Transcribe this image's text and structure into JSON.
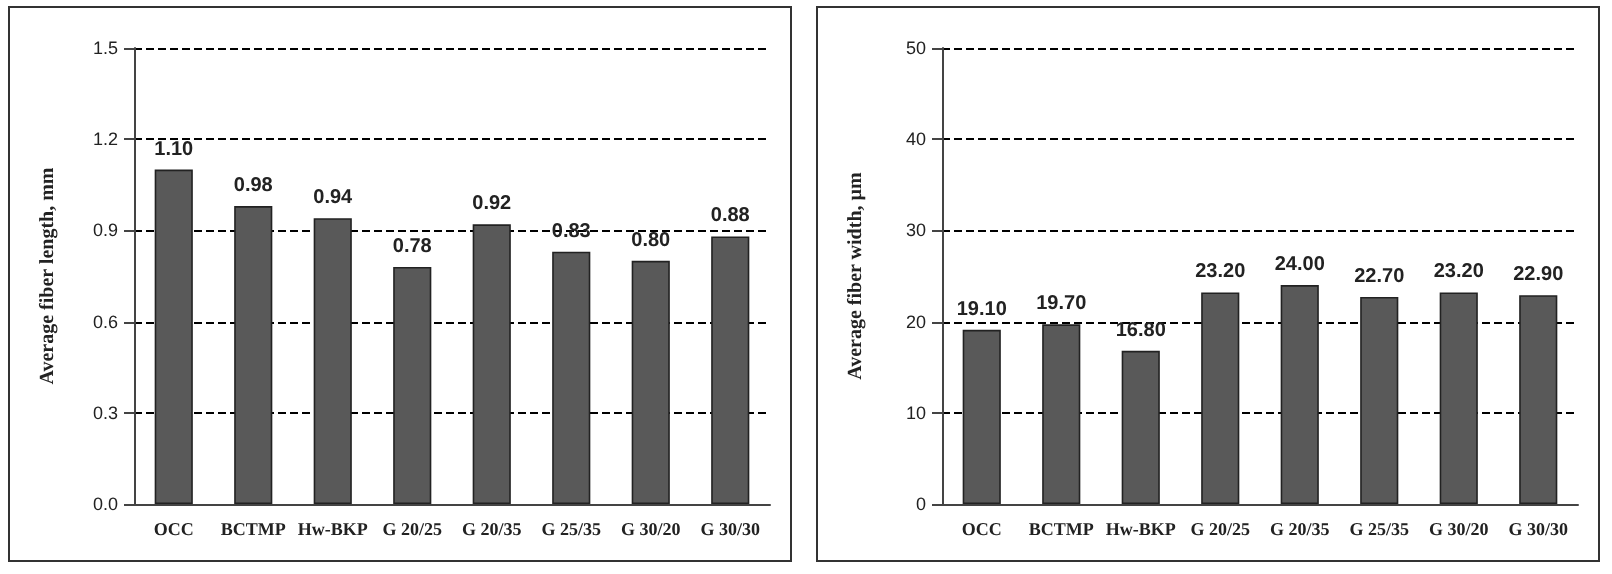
{
  "chart_data": [
    {
      "type": "bar",
      "ylabel": "Average fiber length, mm",
      "categories": [
        "OCC",
        "BCTMP",
        "Hw-BKP",
        "G 20/25",
        "G 20/35",
        "G 25/35",
        "G 30/20",
        "G 30/30"
      ],
      "values": [
        1.1,
        0.98,
        0.94,
        0.78,
        0.92,
        0.83,
        0.8,
        0.88
      ],
      "value_labels": [
        "1.10",
        "0.98",
        "0.94",
        "0.78",
        "0.92",
        "0.83",
        "0.80",
        "0.88"
      ],
      "color": "#595959",
      "ylim": [
        0,
        1.5
      ],
      "yticks": [
        {
          "value": 0,
          "label": "0.0"
        },
        0.3,
        0.6,
        0.9,
        1.2,
        1.5
      ],
      "grid": "y"
    },
    {
      "type": "bar",
      "ylabel": "Average fiber width, µm",
      "categories": [
        "OCC",
        "BCTMP",
        "Hw-BKP",
        "G 20/25",
        "G 20/35",
        "G 25/35",
        "G 30/20",
        "G 30/30"
      ],
      "values": [
        19.1,
        19.7,
        16.8,
        23.2,
        24.0,
        22.7,
        23.2,
        22.9
      ],
      "value_labels": [
        "19.10",
        "19.70",
        "16.80",
        "23.20",
        "24.00",
        "22.70",
        "23.20",
        "22.90"
      ],
      "color": "#595959",
      "ylim": [
        0,
        50
      ],
      "yticks": [
        0,
        10,
        20,
        30,
        40,
        50
      ],
      "grid": "y"
    }
  ]
}
